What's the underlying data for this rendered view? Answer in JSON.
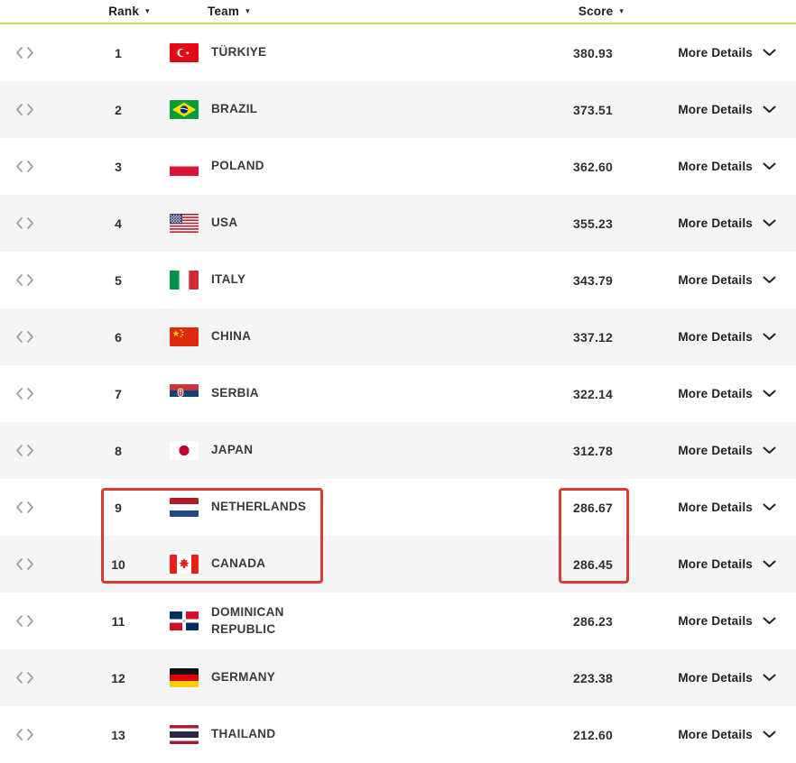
{
  "table": {
    "columns": [
      {
        "label": "Rank"
      },
      {
        "label": "Team"
      },
      {
        "label": "Score"
      }
    ],
    "row_action_label": "More Details",
    "rows": [
      {
        "rank": "1",
        "team": "TÜRKIYE",
        "score": "380.93",
        "flag": "turkiye"
      },
      {
        "rank": "2",
        "team": "BRAZIL",
        "score": "373.51",
        "flag": "brazil"
      },
      {
        "rank": "3",
        "team": "POLAND",
        "score": "362.60",
        "flag": "poland"
      },
      {
        "rank": "4",
        "team": "USA",
        "score": "355.23",
        "flag": "usa"
      },
      {
        "rank": "5",
        "team": "ITALY",
        "score": "343.79",
        "flag": "italy"
      },
      {
        "rank": "6",
        "team": "CHINA",
        "score": "337.12",
        "flag": "china"
      },
      {
        "rank": "7",
        "team": "SERBIA",
        "score": "322.14",
        "flag": "serbia"
      },
      {
        "rank": "8",
        "team": "JAPAN",
        "score": "312.78",
        "flag": "japan"
      },
      {
        "rank": "9",
        "team": "NETHERLANDS",
        "score": "286.67",
        "flag": "netherlands",
        "highlighted": true
      },
      {
        "rank": "10",
        "team": "CANADA",
        "score": "286.45",
        "flag": "canada",
        "highlighted": true
      },
      {
        "rank": "11",
        "team": "DOMINICAN REPUBLIC",
        "score": "286.23",
        "flag": "dominican-republic"
      },
      {
        "rank": "12",
        "team": "GERMANY",
        "score": "223.38",
        "flag": "germany"
      },
      {
        "rank": "13",
        "team": "THAILAND",
        "score": "212.60",
        "flag": "thailand"
      }
    ]
  },
  "icons": {
    "sort_glyph": "▾",
    "expand_icon": "code-brackets",
    "row_chevron": "chevron-down"
  },
  "colors": {
    "accent_line": "#d4d94c",
    "row_alt": "#f5f5f5",
    "annotation_red": "#dd3b2f",
    "text": "#333333",
    "icon_gray": "#9aa0a6"
  },
  "annotations": {
    "team_box": {
      "around": "rank, flag and team of rows ranked 9-10"
    },
    "score_box": {
      "around": "scores of rows ranked 9-10"
    }
  }
}
